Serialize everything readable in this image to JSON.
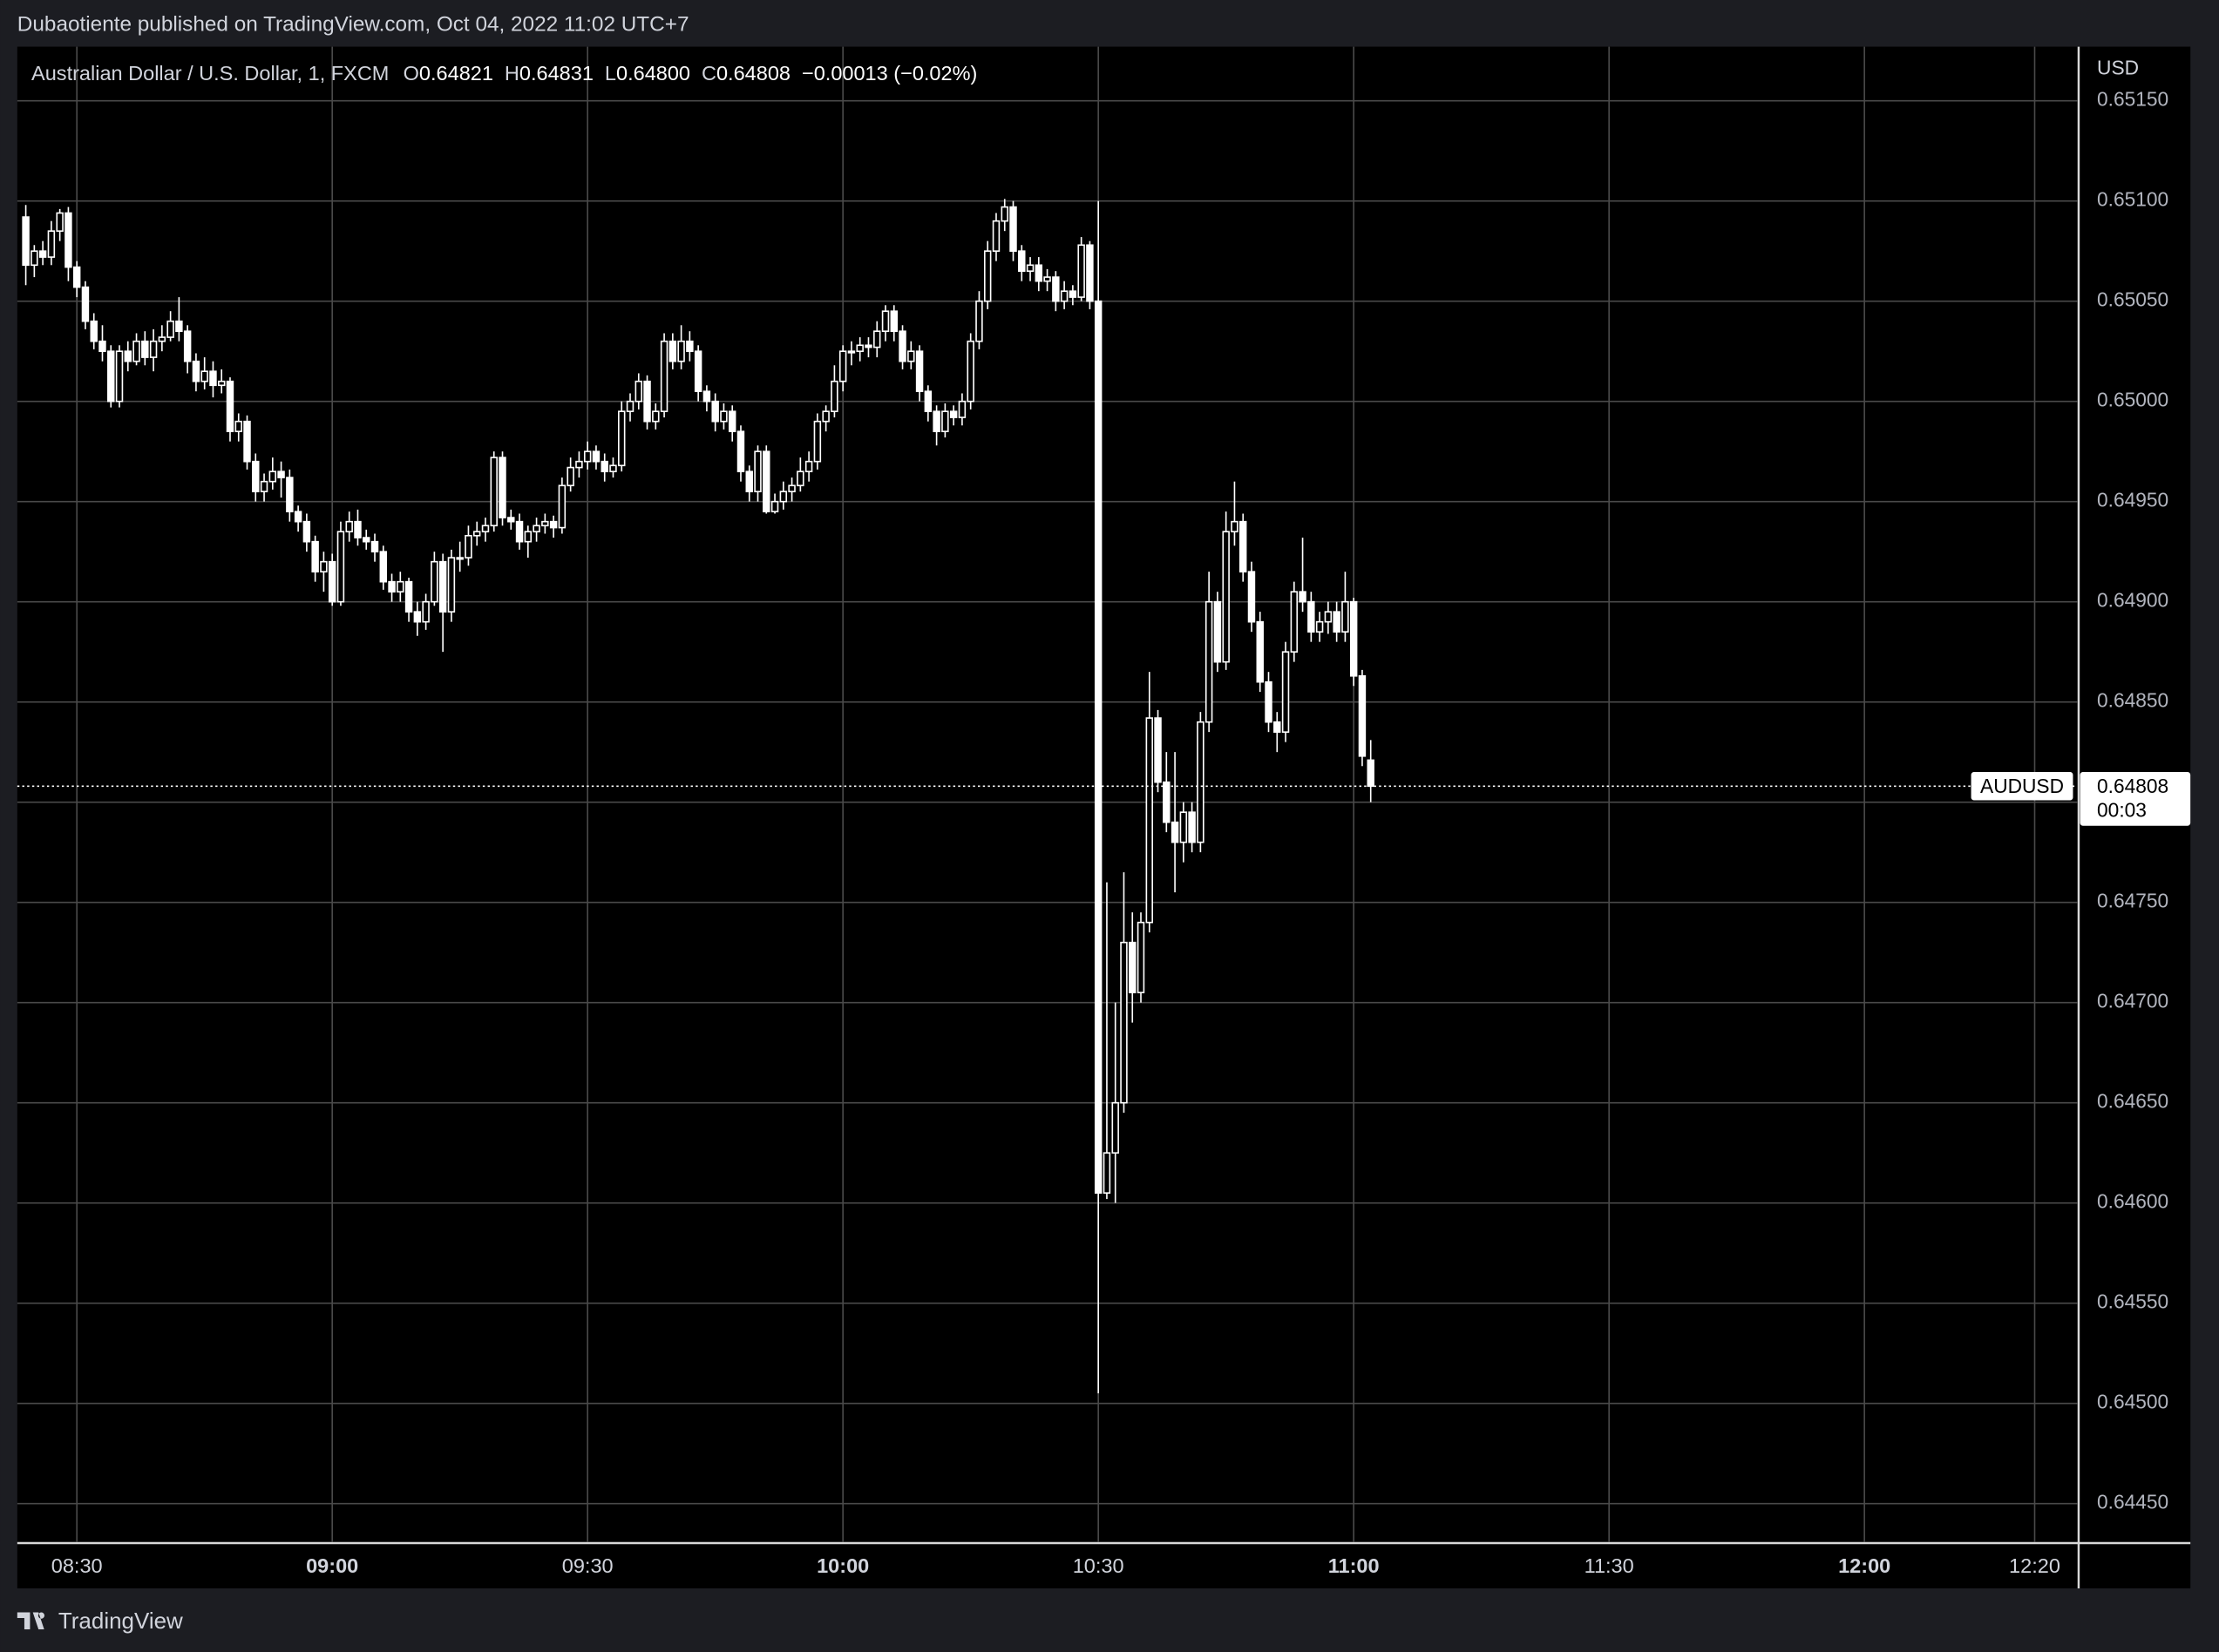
{
  "header": {
    "published": "Dubaotiente published on TradingView.com, Oct 04, 2022 11:02 UTC+7"
  },
  "legend": {
    "symbol": "Australian Dollar / U.S. Dollar, 1, FXCM",
    "open_label": "O",
    "open": "0.64821",
    "high_label": "H",
    "high": "0.64831",
    "low_label": "L",
    "low": "0.64800",
    "close_label": "C",
    "close": "0.64808",
    "change": "−0.00013 (−0.02%)"
  },
  "footer": {
    "brand": "TradingView"
  },
  "chart_data": {
    "type": "candlestick",
    "color": "#ffffff",
    "grid": true,
    "currency": "USD",
    "symbol_tag": "AUDUSD",
    "countdown": "00:03",
    "last_price": {
      "value": 0.64808,
      "label": "0.64808"
    },
    "xlim": [
      "08:23",
      "12:25"
    ],
    "xticks": [
      "08:30",
      "09:00",
      "09:30",
      "10:00",
      "10:30",
      "11:00",
      "11:30",
      "12:00",
      "12:20"
    ],
    "ylim": [
      0.64431,
      0.65177
    ],
    "yticks": [
      {
        "value": 0.6445,
        "label": "0.64450"
      },
      {
        "value": 0.645,
        "label": "0.64500"
      },
      {
        "value": 0.6455,
        "label": "0.64550"
      },
      {
        "value": 0.646,
        "label": "0.64600"
      },
      {
        "value": 0.6465,
        "label": "0.64650"
      },
      {
        "value": 0.647,
        "label": "0.64700"
      },
      {
        "value": 0.6475,
        "label": "0.64750"
      },
      {
        "value": 0.648,
        "label": "0.64800"
      },
      {
        "value": 0.6485,
        "label": "0.64850"
      },
      {
        "value": 0.649,
        "label": "0.64900"
      },
      {
        "value": 0.6495,
        "label": "0.64950"
      },
      {
        "value": 0.65,
        "label": "0.65000"
      },
      {
        "value": 0.6505,
        "label": "0.65050"
      },
      {
        "value": 0.651,
        "label": "0.65100"
      },
      {
        "value": 0.6515,
        "label": "0.65150"
      }
    ],
    "x": [
      "08:24",
      "08:25",
      "08:26",
      "08:27",
      "08:28",
      "08:29",
      "08:30",
      "08:31",
      "08:32",
      "08:33",
      "08:34",
      "08:35",
      "08:36",
      "08:37",
      "08:38",
      "08:39",
      "08:40",
      "08:41",
      "08:42",
      "08:43",
      "08:44",
      "08:45",
      "08:46",
      "08:47",
      "08:48",
      "08:49",
      "08:50",
      "08:51",
      "08:52",
      "08:53",
      "08:54",
      "08:55",
      "08:56",
      "08:57",
      "08:58",
      "08:59",
      "09:00",
      "09:01",
      "09:02",
      "09:03",
      "09:04",
      "09:05",
      "09:06",
      "09:07",
      "09:08",
      "09:09",
      "09:10",
      "09:11",
      "09:12",
      "09:13",
      "09:14",
      "09:15",
      "09:16",
      "09:17",
      "09:18",
      "09:19",
      "09:20",
      "09:21",
      "09:22",
      "09:23",
      "09:24",
      "09:25",
      "09:26",
      "09:27",
      "09:28",
      "09:29",
      "09:30",
      "09:31",
      "09:32",
      "09:33",
      "09:34",
      "09:35",
      "09:36",
      "09:37",
      "09:38",
      "09:39",
      "09:40",
      "09:41",
      "09:42",
      "09:43",
      "09:44",
      "09:45",
      "09:46",
      "09:47",
      "09:48",
      "09:49",
      "09:50",
      "09:51",
      "09:52",
      "09:53",
      "09:54",
      "09:55",
      "09:56",
      "09:57",
      "09:58",
      "09:59",
      "10:00",
      "10:01",
      "10:02",
      "10:03",
      "10:04",
      "10:05",
      "10:06",
      "10:07",
      "10:08",
      "10:09",
      "10:10",
      "10:11",
      "10:12",
      "10:13",
      "10:14",
      "10:15",
      "10:16",
      "10:17",
      "10:18",
      "10:19",
      "10:20",
      "10:21",
      "10:22",
      "10:23",
      "10:24",
      "10:25",
      "10:26",
      "10:27",
      "10:28",
      "10:29",
      "10:30",
      "10:31",
      "10:32",
      "10:33",
      "10:34",
      "10:35",
      "10:36",
      "10:37",
      "10:38",
      "10:39",
      "10:40",
      "10:41",
      "10:42",
      "10:43",
      "10:44",
      "10:45",
      "10:46",
      "10:47",
      "10:48",
      "10:49",
      "10:50",
      "10:51",
      "10:52",
      "10:53",
      "10:54",
      "10:55",
      "10:56",
      "10:57",
      "10:58",
      "10:59",
      "11:00",
      "11:01",
      "11:02"
    ],
    "ohlc": [
      [
        0.65092,
        0.65098,
        0.65058,
        0.65068
      ],
      [
        0.65068,
        0.65078,
        0.65062,
        0.65075
      ],
      [
        0.65075,
        0.6508,
        0.65068,
        0.65072
      ],
      [
        0.65072,
        0.6509,
        0.65068,
        0.65085
      ],
      [
        0.65085,
        0.65096,
        0.6508,
        0.65094
      ],
      [
        0.65094,
        0.65097,
        0.6506,
        0.65067
      ],
      [
        0.65067,
        0.6507,
        0.65052,
        0.65057
      ],
      [
        0.65057,
        0.6506,
        0.65036,
        0.6504
      ],
      [
        0.6504,
        0.65044,
        0.65026,
        0.6503
      ],
      [
        0.6503,
        0.65038,
        0.6502,
        0.65025
      ],
      [
        0.65025,
        0.65028,
        0.64997,
        0.65
      ],
      [
        0.65,
        0.65028,
        0.64997,
        0.65025
      ],
      [
        0.65025,
        0.6503,
        0.65015,
        0.6502
      ],
      [
        0.6502,
        0.65034,
        0.65018,
        0.6503
      ],
      [
        0.6503,
        0.65035,
        0.65018,
        0.65022
      ],
      [
        0.65022,
        0.65036,
        0.65015,
        0.6503
      ],
      [
        0.6503,
        0.65038,
        0.65025,
        0.65032
      ],
      [
        0.65032,
        0.65045,
        0.6503,
        0.6504
      ],
      [
        0.6504,
        0.65052,
        0.6503,
        0.65035
      ],
      [
        0.65035,
        0.65038,
        0.65014,
        0.6502
      ],
      [
        0.6502,
        0.65024,
        0.65005,
        0.6501
      ],
      [
        0.6501,
        0.65022,
        0.65006,
        0.65015
      ],
      [
        0.65015,
        0.6502,
        0.65002,
        0.65008
      ],
      [
        0.65008,
        0.65016,
        0.65004,
        0.6501
      ],
      [
        0.6501,
        0.65012,
        0.6498,
        0.64985
      ],
      [
        0.64985,
        0.64994,
        0.6498,
        0.6499
      ],
      [
        0.6499,
        0.64993,
        0.64966,
        0.6497
      ],
      [
        0.6497,
        0.64974,
        0.6495,
        0.64955
      ],
      [
        0.64955,
        0.64964,
        0.6495,
        0.6496
      ],
      [
        0.6496,
        0.64972,
        0.64956,
        0.64965
      ],
      [
        0.64965,
        0.6497,
        0.64952,
        0.64962
      ],
      [
        0.64962,
        0.64966,
        0.6494,
        0.64945
      ],
      [
        0.64945,
        0.64948,
        0.64935,
        0.6494
      ],
      [
        0.6494,
        0.64944,
        0.64925,
        0.6493
      ],
      [
        0.6493,
        0.64933,
        0.6491,
        0.64915
      ],
      [
        0.64915,
        0.64925,
        0.64905,
        0.6492
      ],
      [
        0.6492,
        0.64924,
        0.64898,
        0.649
      ],
      [
        0.649,
        0.6494,
        0.64898,
        0.64935
      ],
      [
        0.64935,
        0.64945,
        0.6493,
        0.6494
      ],
      [
        0.6494,
        0.64946,
        0.64928,
        0.64932
      ],
      [
        0.64932,
        0.64936,
        0.64926,
        0.6493
      ],
      [
        0.6493,
        0.64934,
        0.6492,
        0.64925
      ],
      [
        0.64925,
        0.64928,
        0.64906,
        0.6491
      ],
      [
        0.6491,
        0.64914,
        0.649,
        0.64905
      ],
      [
        0.64905,
        0.64915,
        0.649,
        0.6491
      ],
      [
        0.6491,
        0.64912,
        0.6489,
        0.64895
      ],
      [
        0.64895,
        0.649,
        0.64883,
        0.6489
      ],
      [
        0.6489,
        0.64904,
        0.64886,
        0.649
      ],
      [
        0.649,
        0.64925,
        0.64898,
        0.6492
      ],
      [
        0.6492,
        0.64924,
        0.64875,
        0.64895
      ],
      [
        0.64895,
        0.64926,
        0.6489,
        0.64922
      ],
      [
        0.64922,
        0.6493,
        0.64915,
        0.64922
      ],
      [
        0.64922,
        0.64938,
        0.64918,
        0.64933
      ],
      [
        0.64933,
        0.6494,
        0.64928,
        0.64935
      ],
      [
        0.64935,
        0.64942,
        0.6493,
        0.64938
      ],
      [
        0.64938,
        0.64975,
        0.64935,
        0.64972
      ],
      [
        0.64972,
        0.64975,
        0.64938,
        0.64942
      ],
      [
        0.64942,
        0.64946,
        0.64936,
        0.6494
      ],
      [
        0.6494,
        0.64944,
        0.64926,
        0.6493
      ],
      [
        0.6493,
        0.64938,
        0.64922,
        0.64935
      ],
      [
        0.64935,
        0.64942,
        0.6493,
        0.64938
      ],
      [
        0.64938,
        0.64944,
        0.64934,
        0.6494
      ],
      [
        0.6494,
        0.64943,
        0.64932,
        0.64937
      ],
      [
        0.64937,
        0.64962,
        0.64934,
        0.64958
      ],
      [
        0.64958,
        0.64972,
        0.64955,
        0.64967
      ],
      [
        0.64967,
        0.64975,
        0.64962,
        0.6497
      ],
      [
        0.6497,
        0.6498,
        0.64966,
        0.64975
      ],
      [
        0.64975,
        0.64978,
        0.64966,
        0.6497
      ],
      [
        0.6497,
        0.64974,
        0.6496,
        0.64965
      ],
      [
        0.64965,
        0.64972,
        0.64962,
        0.64968
      ],
      [
        0.64968,
        0.65,
        0.64965,
        0.64995
      ],
      [
        0.64995,
        0.65004,
        0.6499,
        0.65
      ],
      [
        0.65,
        0.65014,
        0.64996,
        0.6501
      ],
      [
        0.6501,
        0.65013,
        0.64986,
        0.6499
      ],
      [
        0.6499,
        0.64999,
        0.64986,
        0.64995
      ],
      [
        0.64995,
        0.65034,
        0.64992,
        0.6503
      ],
      [
        0.6503,
        0.65034,
        0.65016,
        0.6502
      ],
      [
        0.6502,
        0.65038,
        0.65016,
        0.6503
      ],
      [
        0.6503,
        0.65035,
        0.6502,
        0.65025
      ],
      [
        0.65025,
        0.65028,
        0.65,
        0.65005
      ],
      [
        0.65005,
        0.65008,
        0.64995,
        0.65
      ],
      [
        0.65,
        0.65004,
        0.64985,
        0.6499
      ],
      [
        0.6499,
        0.64999,
        0.64986,
        0.64995
      ],
      [
        0.64995,
        0.64998,
        0.6498,
        0.64985
      ],
      [
        0.64985,
        0.64988,
        0.6496,
        0.64965
      ],
      [
        0.64965,
        0.64968,
        0.6495,
        0.64955
      ],
      [
        0.64955,
        0.64978,
        0.6495,
        0.64975
      ],
      [
        0.64975,
        0.64978,
        0.64944,
        0.64945
      ],
      [
        0.64945,
        0.64954,
        0.64944,
        0.6495
      ],
      [
        0.6495,
        0.6496,
        0.64946,
        0.64955
      ],
      [
        0.64955,
        0.64962,
        0.6495,
        0.64958
      ],
      [
        0.64958,
        0.64972,
        0.64955,
        0.64965
      ],
      [
        0.64965,
        0.64975,
        0.6496,
        0.6497
      ],
      [
        0.6497,
        0.64994,
        0.64966,
        0.6499
      ],
      [
        0.6499,
        0.64998,
        0.64985,
        0.64995
      ],
      [
        0.64995,
        0.65018,
        0.64992,
        0.6501
      ],
      [
        0.6501,
        0.65028,
        0.65005,
        0.65025
      ],
      [
        0.65025,
        0.6503,
        0.65018,
        0.65025
      ],
      [
        0.65025,
        0.65032,
        0.6502,
        0.65028
      ],
      [
        0.65028,
        0.65032,
        0.65022,
        0.65027
      ],
      [
        0.65027,
        0.6504,
        0.65022,
        0.65035
      ],
      [
        0.65035,
        0.65048,
        0.6503,
        0.65045
      ],
      [
        0.65045,
        0.65048,
        0.6503,
        0.65035
      ],
      [
        0.65035,
        0.65038,
        0.65016,
        0.6502
      ],
      [
        0.6502,
        0.6503,
        0.65016,
        0.65025
      ],
      [
        0.65025,
        0.65028,
        0.65,
        0.65005
      ],
      [
        0.65005,
        0.65008,
        0.6499,
        0.64995
      ],
      [
        0.64995,
        0.64998,
        0.64978,
        0.64985
      ],
      [
        0.64985,
        0.64999,
        0.64982,
        0.64995
      ],
      [
        0.64995,
        0.64998,
        0.64988,
        0.64992
      ],
      [
        0.64992,
        0.65004,
        0.64988,
        0.65
      ],
      [
        0.65,
        0.65034,
        0.64996,
        0.6503
      ],
      [
        0.6503,
        0.65055,
        0.65026,
        0.6505
      ],
      [
        0.6505,
        0.6508,
        0.65046,
        0.65075
      ],
      [
        0.65075,
        0.65094,
        0.6507,
        0.6509
      ],
      [
        0.6509,
        0.65101,
        0.65085,
        0.65097
      ],
      [
        0.65097,
        0.651,
        0.6507,
        0.65075
      ],
      [
        0.65075,
        0.65078,
        0.6506,
        0.65065
      ],
      [
        0.65065,
        0.65072,
        0.6506,
        0.65068
      ],
      [
        0.65068,
        0.65072,
        0.65055,
        0.6506
      ],
      [
        0.6506,
        0.65066,
        0.65055,
        0.65062
      ],
      [
        0.65062,
        0.65065,
        0.65045,
        0.6505
      ],
      [
        0.6505,
        0.6506,
        0.65046,
        0.65055
      ],
      [
        0.65055,
        0.65058,
        0.65048,
        0.65052
      ],
      [
        0.65052,
        0.65082,
        0.6505,
        0.65078
      ],
      [
        0.65078,
        0.6508,
        0.65046,
        0.6505
      ],
      [
        0.6505,
        0.651,
        0.64505,
        0.64605
      ],
      [
        0.64605,
        0.6476,
        0.64602,
        0.64625
      ],
      [
        0.64625,
        0.647,
        0.646,
        0.6465
      ],
      [
        0.6465,
        0.64765,
        0.64645,
        0.6473
      ],
      [
        0.6473,
        0.64745,
        0.6469,
        0.64705
      ],
      [
        0.64705,
        0.64745,
        0.647,
        0.6474
      ],
      [
        0.6474,
        0.64865,
        0.64735,
        0.64842
      ],
      [
        0.64842,
        0.64846,
        0.64805,
        0.6481
      ],
      [
        0.6481,
        0.64825,
        0.64785,
        0.6479
      ],
      [
        0.6479,
        0.64825,
        0.64755,
        0.6478
      ],
      [
        0.6478,
        0.648,
        0.6477,
        0.64795
      ],
      [
        0.64795,
        0.648,
        0.64775,
        0.6478
      ],
      [
        0.6478,
        0.64845,
        0.64775,
        0.6484
      ],
      [
        0.6484,
        0.64915,
        0.64835,
        0.649
      ],
      [
        0.649,
        0.64905,
        0.64865,
        0.6487
      ],
      [
        0.6487,
        0.64945,
        0.64866,
        0.64935
      ],
      [
        0.64935,
        0.6496,
        0.64928,
        0.6494
      ],
      [
        0.6494,
        0.64944,
        0.6491,
        0.64915
      ],
      [
        0.64915,
        0.6492,
        0.64885,
        0.6489
      ],
      [
        0.6489,
        0.64895,
        0.64855,
        0.6486
      ],
      [
        0.6486,
        0.64865,
        0.64835,
        0.6484
      ],
      [
        0.6484,
        0.64845,
        0.64825,
        0.64835
      ],
      [
        0.64835,
        0.6488,
        0.6483,
        0.64875
      ],
      [
        0.64875,
        0.6491,
        0.6487,
        0.64905
      ],
      [
        0.64905,
        0.64932,
        0.64895,
        0.649
      ],
      [
        0.649,
        0.64905,
        0.6488,
        0.64885
      ],
      [
        0.64885,
        0.64895,
        0.6488,
        0.6489
      ],
      [
        0.6489,
        0.649,
        0.64884,
        0.64895
      ],
      [
        0.64895,
        0.649,
        0.6488,
        0.64885
      ],
      [
        0.64885,
        0.64915,
        0.6488,
        0.649
      ],
      [
        0.649,
        0.64902,
        0.64858,
        0.64863
      ],
      [
        0.64863,
        0.64866,
        0.64818,
        0.64823
      ],
      [
        0.64821,
        0.64831,
        0.648,
        0.64808
      ]
    ]
  }
}
